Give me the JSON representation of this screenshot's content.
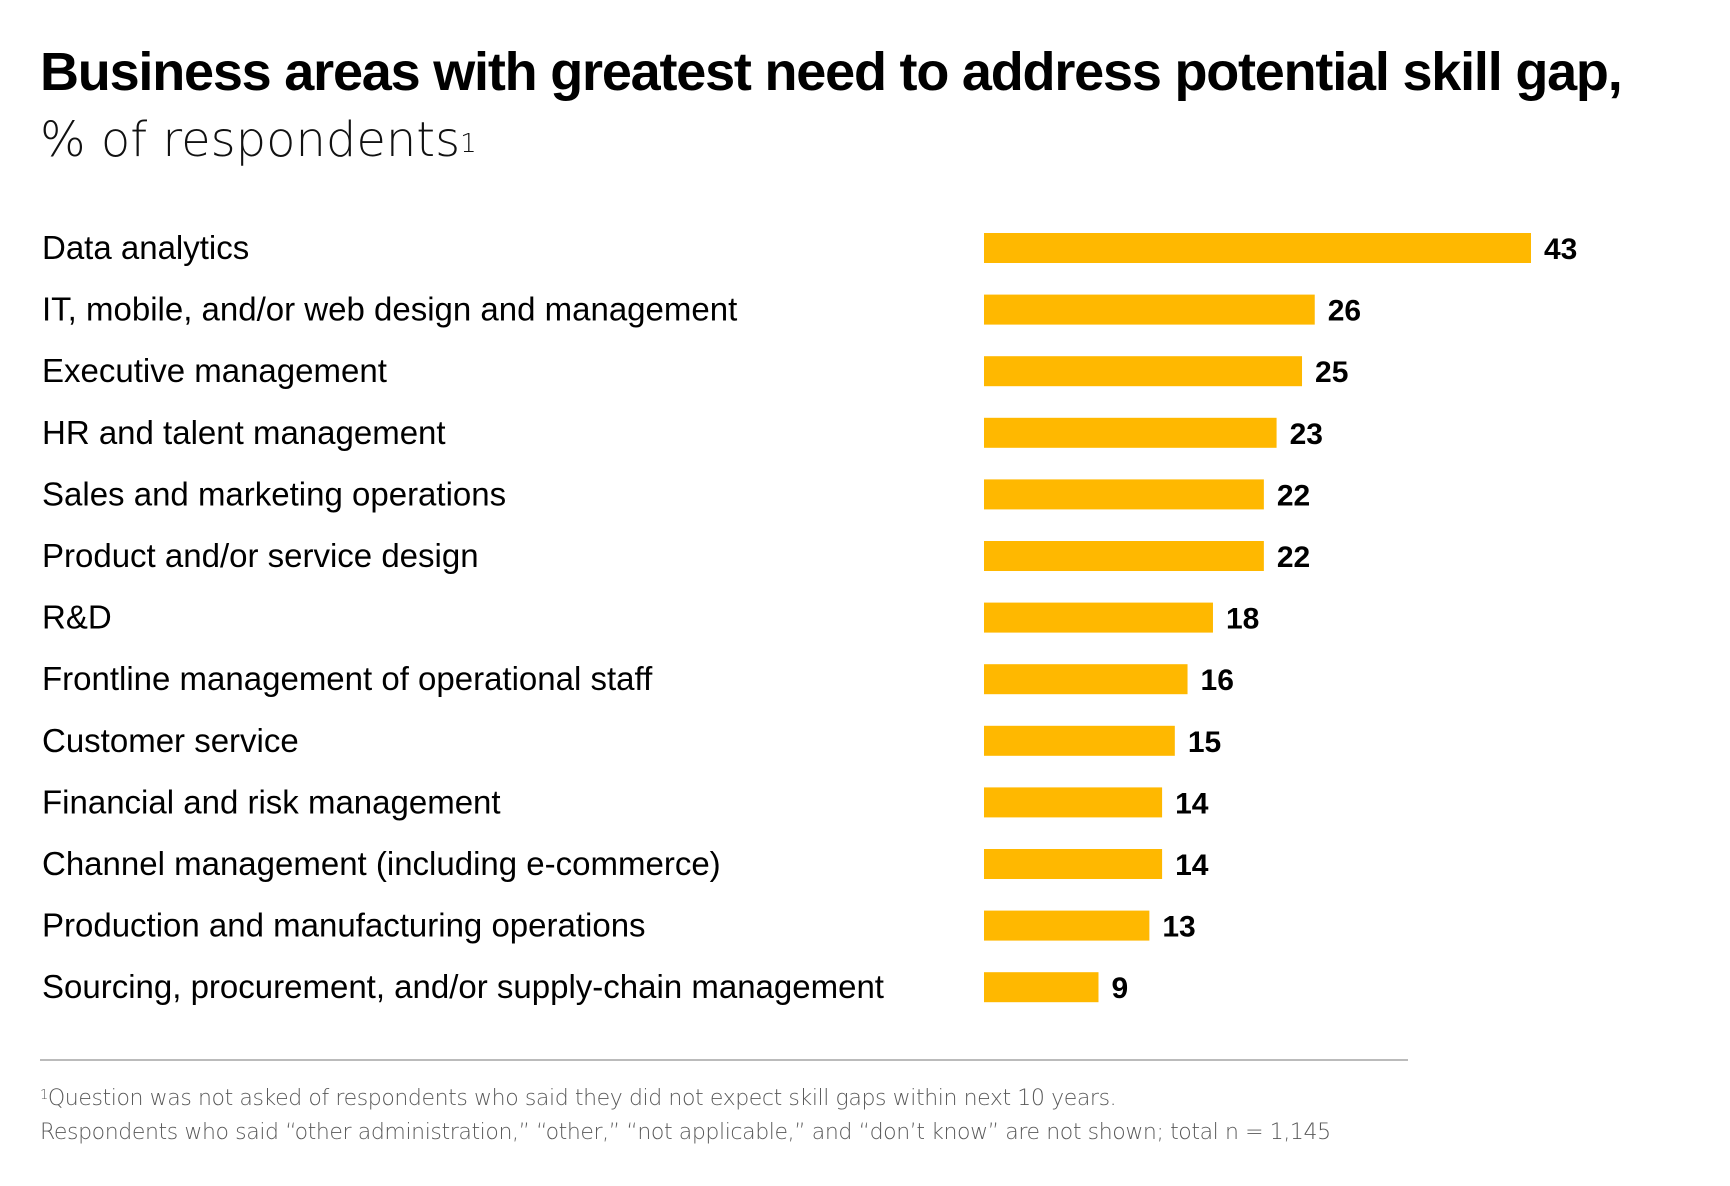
{
  "header": {
    "title": "Business areas with greatest need to address potential skill gap,",
    "subtitle": "% of respondents",
    "subtitle_footnote_marker": "1"
  },
  "colors": {
    "bar": "#FFB800",
    "text": "#000000",
    "footnote": "#595959",
    "divider": "#BBBBBB"
  },
  "chart_data": {
    "type": "bar",
    "orientation": "horizontal",
    "title": "Business areas with greatest need to address potential skill gap, % of respondents",
    "xlabel": "",
    "ylabel": "",
    "unit": "% of respondents",
    "grid": false,
    "legend": "none",
    "xlim": [
      0,
      43
    ],
    "categories": [
      "Data analytics",
      "IT, mobile, and/or web design and management",
      "Executive management",
      "HR and talent management",
      "Sales and marketing operations",
      "Product and/or service design",
      "R&D",
      "Frontline management of operational staff",
      "Customer service",
      "Financial and risk management",
      "Channel management (including e-commerce)",
      "Production and manufacturing operations",
      "Sourcing, procurement, and/or supply-chain management"
    ],
    "values": [
      43,
      26,
      25,
      23,
      22,
      22,
      18,
      16,
      15,
      14,
      14,
      13,
      9
    ]
  },
  "footnotes": {
    "marker": "1",
    "line1": "Question was not asked of respondents who said they did not expect skill gaps within next 10 years.",
    "line2": "Respondents who said “other administration,” “other,” “not applicable,” and “don’t know” are not shown; total n = 1,145"
  }
}
